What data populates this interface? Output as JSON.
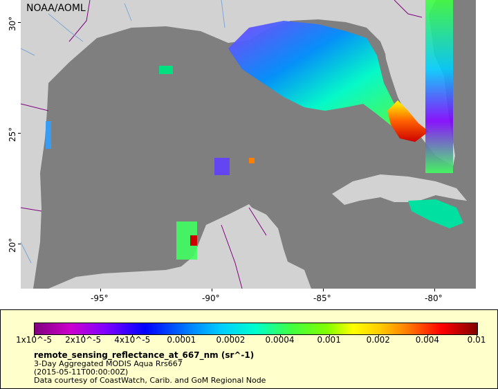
{
  "credit": "NOAA/AOML",
  "latitude_labels": [
    "30°",
    "25°",
    "20°"
  ],
  "longitude_labels": [
    "-95°",
    "-90°",
    "-85°",
    "-80°"
  ],
  "colorbar": {
    "ticks": [
      "1x10^-5",
      "2x10^-5",
      "4x10^-5",
      "0.0001",
      "0.0002",
      "0.0004",
      "0.001",
      "0.002",
      "0.004",
      "0.01"
    ]
  },
  "caption": {
    "variable": "remote_sensing_reflectance_at_667_nm (sr^-1)",
    "dataset": "3-Day Aggregated MODIS Aqua Rrs667",
    "time": "(2015-05-11T00:00:00Z)",
    "courtesy": "Data courtesy of CoastWatch, Carib. and GoM Regional Node"
  },
  "colors": {
    "land": "#d2d2d2",
    "ocean_no_data": "#7f7f7f",
    "legend_background": "#ffffcc"
  }
}
